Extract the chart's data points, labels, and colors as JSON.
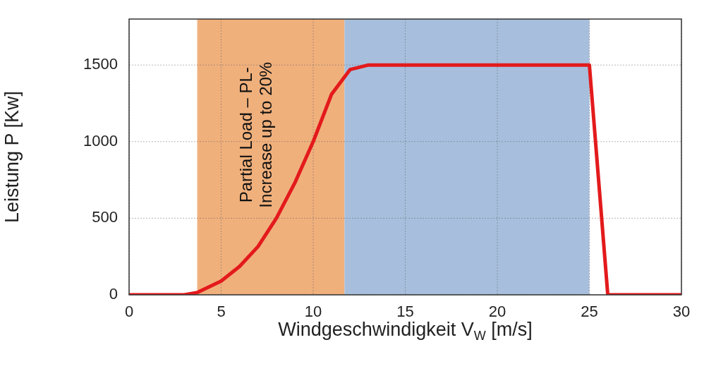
{
  "chart_data": {
    "type": "line",
    "xlabel": "Windgeschwindigkeit V$_{W}$ [m/s]",
    "ylabel": "Leistung P [Kw]",
    "x": [
      0,
      3,
      3.7,
      5,
      6,
      7,
      8,
      9,
      10,
      11,
      12,
      13,
      25,
      26,
      30
    ],
    "series": [
      {
        "color": "#e31a1c",
        "values": [
          0,
          0,
          15,
          90,
          185,
          315,
          500,
          730,
          1000,
          1310,
          1470,
          1500,
          1500,
          0,
          0
        ]
      }
    ],
    "xlim": [
      0,
      30
    ],
    "xticks": [
      0,
      5,
      10,
      15,
      20,
      25,
      30
    ],
    "ylim": [
      0,
      1800
    ],
    "yticks": [
      0,
      500,
      1000,
      1500
    ],
    "bands": [
      {
        "axis": "x",
        "from": 3.7,
        "to": 11.7,
        "color": "#f0b07c",
        "label": "Partial Load – PL-\nIncrease up to 20%"
      },
      {
        "axis": "x",
        "from": 11.7,
        "to": 25,
        "color": "#a7bfdc"
      }
    ],
    "grid": true,
    "legend": false,
    "marker": "none",
    "line_style": "solid"
  }
}
